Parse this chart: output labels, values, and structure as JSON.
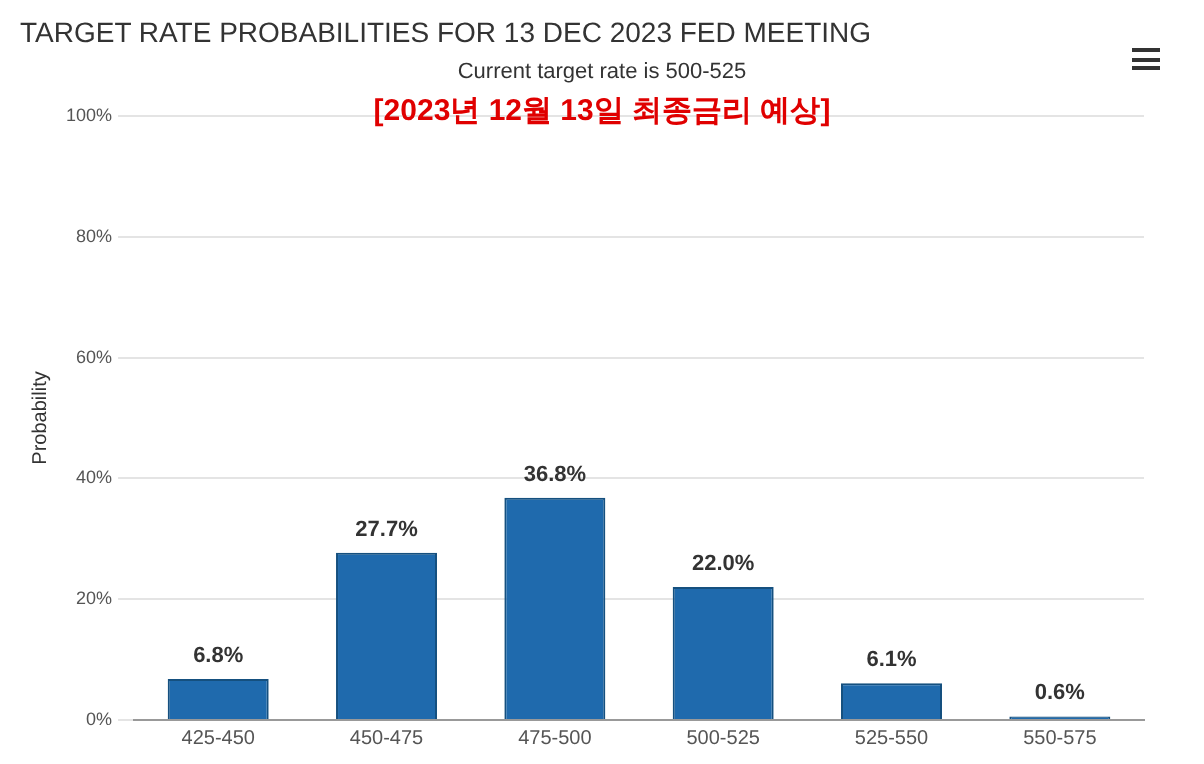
{
  "chart_data": {
    "type": "bar",
    "title": "TARGET RATE PROBABILITIES FOR 13 DEC 2023 FED MEETING",
    "subtitle": "Current target rate is 500-525",
    "annotations": [
      "[2023년 12월 13일 최종금리 예상]"
    ],
    "ylabel": "Probability",
    "categories": [
      "425-450",
      "450-475",
      "475-500",
      "500-525",
      "525-550",
      "550-575"
    ],
    "values": [
      6.8,
      27.7,
      36.8,
      22.0,
      6.1,
      0.6
    ],
    "value_labels": [
      "6.8%",
      "27.7%",
      "36.8%",
      "22.0%",
      "6.1%",
      "0.6%"
    ],
    "color": "#1f6aad",
    "ylim": [
      0,
      100
    ],
    "yticks": [
      {
        "value": 0,
        "label": "0%"
      },
      {
        "value": 20,
        "label": "20%"
      },
      {
        "value": 40,
        "label": "40%"
      },
      {
        "value": 60,
        "label": "60%"
      },
      {
        "value": 80,
        "label": "80%"
      },
      {
        "value": 100,
        "label": "100%"
      }
    ],
    "grid": "y",
    "legend": false
  }
}
